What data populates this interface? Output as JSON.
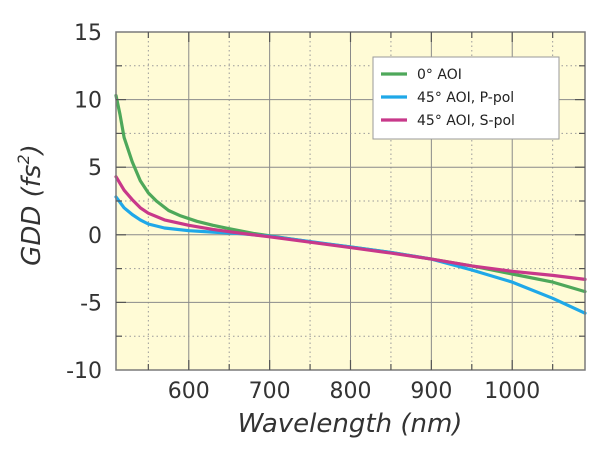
{
  "chart_data": {
    "type": "line",
    "title": "",
    "xlabel": "Wavelength (nm)",
    "ylabel_main": "GDD (fs",
    "ylabel_sup": "2",
    "ylabel_close": ")",
    "xlim": [
      510,
      1090
    ],
    "ylim": [
      -10,
      15
    ],
    "xticks": [
      600,
      700,
      800,
      900,
      1000
    ],
    "yticks": [
      15,
      10,
      5,
      0,
      -5,
      -10
    ],
    "grid": true,
    "legend_position": "top-right",
    "background_color": "#fffbd6",
    "series": [
      {
        "name": "0° AOI",
        "color": "#4ea85a",
        "x": [
          510,
          515,
          520,
          530,
          540,
          550,
          560,
          575,
          590,
          610,
          630,
          650,
          680,
          720,
          760,
          800,
          850,
          900,
          950,
          1000,
          1050,
          1090
        ],
        "y": [
          10.3,
          8.9,
          7.2,
          5.4,
          4.0,
          3.1,
          2.5,
          1.8,
          1.4,
          1.0,
          0.7,
          0.45,
          0.1,
          -0.25,
          -0.6,
          -0.9,
          -1.3,
          -1.8,
          -2.3,
          -2.9,
          -3.5,
          -4.2
        ]
      },
      {
        "name": "45° AOI, P-pol",
        "color": "#1fa8e8",
        "x": [
          510,
          520,
          530,
          540,
          550,
          570,
          600,
          630,
          660,
          700,
          750,
          800,
          850,
          900,
          950,
          1000,
          1050,
          1090
        ],
        "y": [
          2.8,
          2.0,
          1.5,
          1.1,
          0.8,
          0.5,
          0.3,
          0.2,
          0.1,
          -0.1,
          -0.5,
          -0.9,
          -1.3,
          -1.8,
          -2.6,
          -3.5,
          -4.7,
          -5.8
        ]
      },
      {
        "name": "45° AOI, S-pol",
        "color": "#c8388a",
        "x": [
          510,
          520,
          530,
          540,
          550,
          570,
          600,
          630,
          660,
          700,
          750,
          800,
          850,
          900,
          950,
          1000,
          1050,
          1090
        ],
        "y": [
          4.3,
          3.3,
          2.6,
          2.0,
          1.6,
          1.1,
          0.7,
          0.4,
          0.15,
          -0.15,
          -0.55,
          -0.95,
          -1.35,
          -1.8,
          -2.3,
          -2.7,
          -3.0,
          -3.3
        ]
      }
    ]
  }
}
